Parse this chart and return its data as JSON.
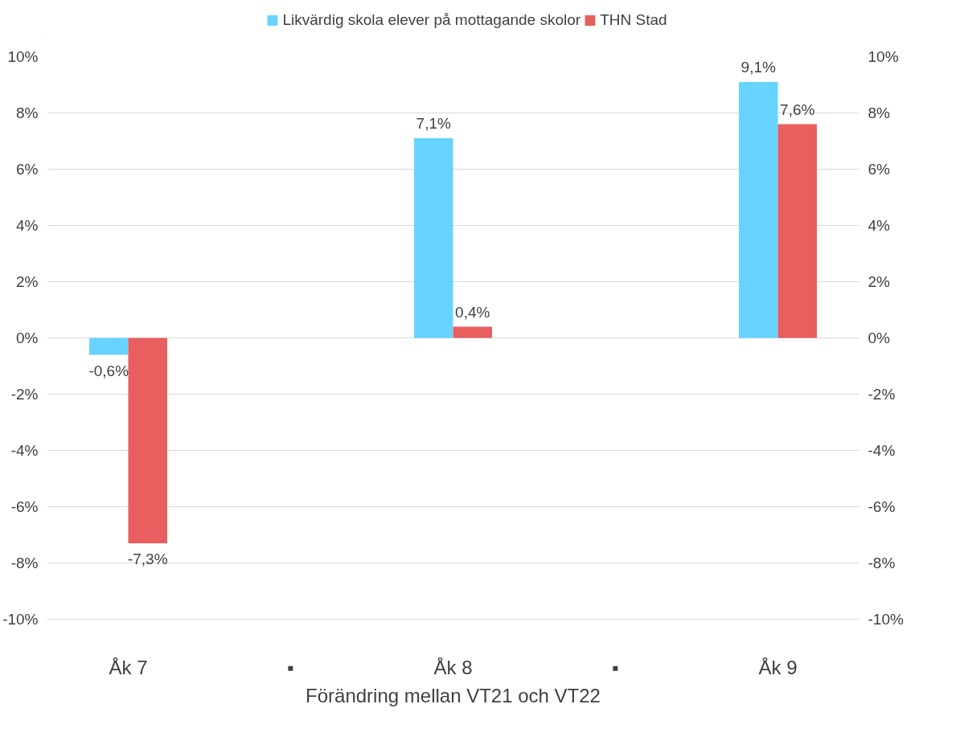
{
  "chart_data": {
    "type": "bar",
    "categories": [
      "Åk 7",
      "▪",
      "Åk 8",
      "▪",
      "Åk 9"
    ],
    "xlabel": "Förändring mellan VT21 och VT22",
    "series": [
      {
        "name": "Likvärdig skola elever på mottagande skolor",
        "color": "#66d4ff",
        "values": [
          -0.6,
          null,
          7.1,
          null,
          9.1
        ],
        "value_labels": [
          "-0,6%",
          null,
          "7,1%",
          null,
          "9,1%"
        ]
      },
      {
        "name": "THN Stad",
        "color": "#e95e5e",
        "values": [
          -7.3,
          null,
          0.4,
          null,
          7.6
        ],
        "value_labels": [
          "-7,3%",
          null,
          "0,4%",
          null,
          "7,6%"
        ]
      }
    ],
    "ylim": [
      -10,
      10
    ],
    "yticks": [
      {
        "value": -10,
        "label": "-10%"
      },
      {
        "value": -8,
        "label": "-8%"
      },
      {
        "value": -6,
        "label": "-6%"
      },
      {
        "value": -4,
        "label": "-4%"
      },
      {
        "value": -2,
        "label": "-2%"
      },
      {
        "value": 0,
        "label": "0%"
      },
      {
        "value": 2,
        "label": "2%"
      },
      {
        "value": 4,
        "label": "4%"
      },
      {
        "value": 6,
        "label": "6%"
      },
      {
        "value": 8,
        "label": "8%"
      },
      {
        "value": 10,
        "label": "10%"
      }
    ],
    "y2lim": [
      -10,
      10
    ],
    "y2ticks": [
      {
        "value": -10,
        "label": "-10%"
      },
      {
        "value": -8,
        "label": "-8%"
      },
      {
        "value": -6,
        "label": "-6%"
      },
      {
        "value": -4,
        "label": "-4%"
      },
      {
        "value": -2,
        "label": "-2%"
      },
      {
        "value": 0,
        "label": "0%"
      },
      {
        "value": 2,
        "label": "2%"
      },
      {
        "value": 4,
        "label": "4%"
      },
      {
        "value": 6,
        "label": "6%"
      },
      {
        "value": 8,
        "label": "8%"
      },
      {
        "value": 10,
        "label": "10%"
      }
    ],
    "grid": "y",
    "legend": "top"
  }
}
